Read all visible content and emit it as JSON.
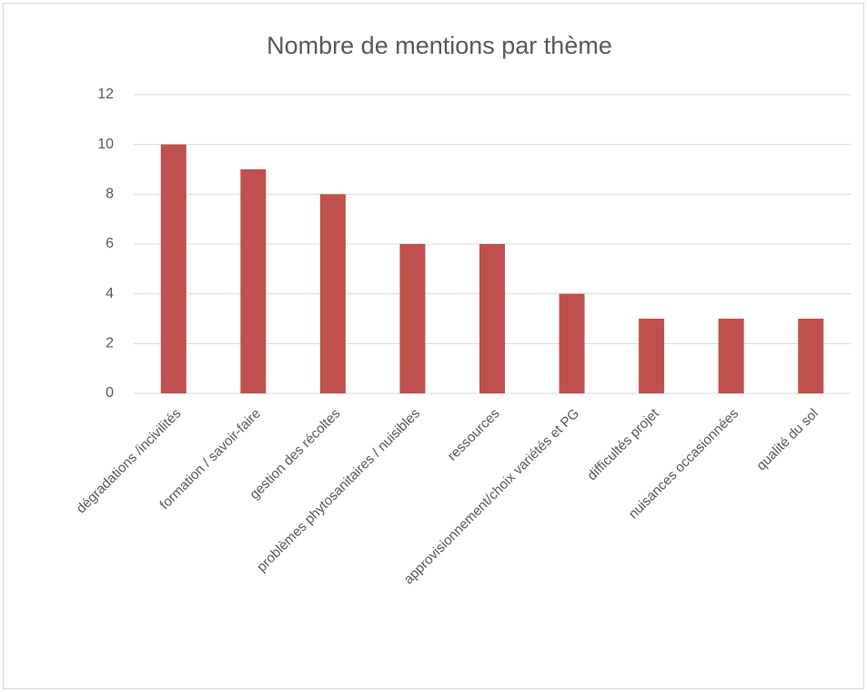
{
  "chart_data": {
    "type": "bar",
    "title": "Nombre de mentions par thème",
    "categories": [
      "dégradations /incivilités",
      "formation / savoir-faire",
      "gestion des récoltes",
      "problèmes phytosanitaires / nuisibles",
      "ressources",
      "approvisionnement/choix variétés et PG",
      "difficultés projet",
      "nuisances occasionnées",
      "qualité du sol"
    ],
    "values": [
      10,
      9,
      8,
      6,
      6,
      4,
      3,
      3,
      3
    ],
    "color": "#c0504d",
    "ylim": [
      0,
      12
    ],
    "yticks": [
      0,
      2,
      4,
      6,
      8,
      10,
      12
    ],
    "grid": true
  }
}
